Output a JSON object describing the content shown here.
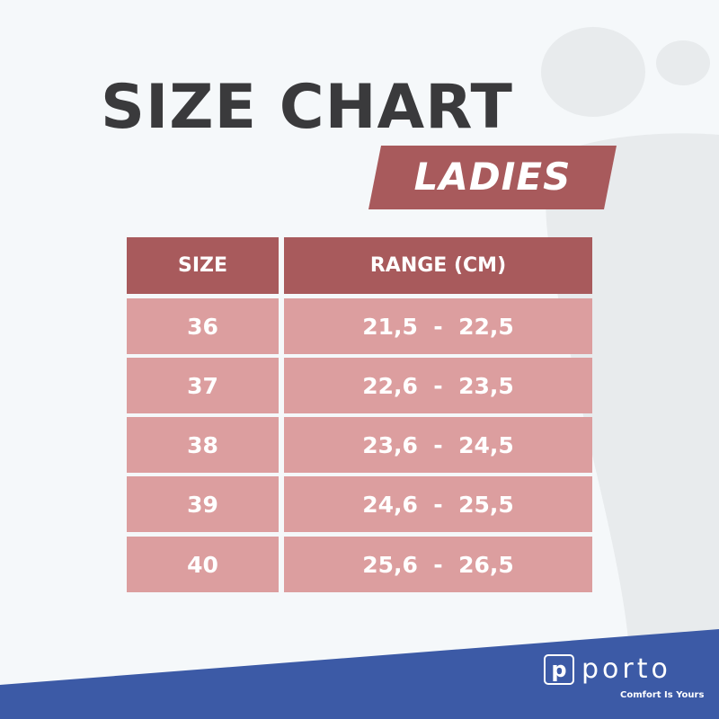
{
  "title": "SIZE CHART",
  "subtitle": "LADIES",
  "table": {
    "headers": [
      "SIZE",
      "RANGE (CM)"
    ],
    "rows": [
      {
        "size": "36",
        "range": "21,5  -  22,5"
      },
      {
        "size": "37",
        "range": "22,6  -  23,5"
      },
      {
        "size": "38",
        "range": "23,6  -  24,5"
      },
      {
        "size": "39",
        "range": "24,6  -  25,5"
      },
      {
        "size": "40",
        "range": "25,6  -  26,5"
      }
    ]
  },
  "brand": {
    "logo_letter": "p",
    "name": "porto",
    "tagline": "Comfort Is Yours"
  },
  "colors": {
    "header": "#a85a5c",
    "row": "#dc9e9f",
    "band": "#3c5aa6",
    "text": "#3a3a3c"
  }
}
